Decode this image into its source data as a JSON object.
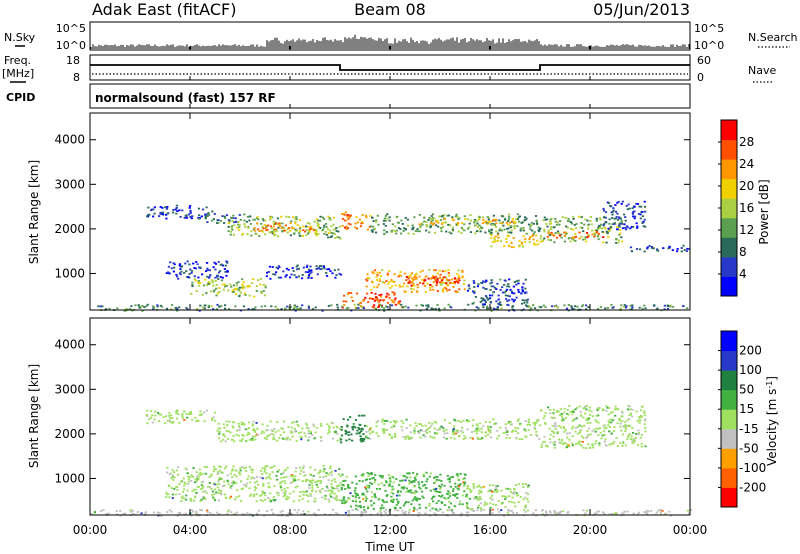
{
  "header": {
    "station": "Adak East (fitACF)",
    "beam": "Beam 08",
    "date": "05/Jun/2013"
  },
  "top_panels": {
    "nsky_label": "N.Sky",
    "nsky_ticks": [
      "10^5",
      "10^0"
    ],
    "nsearch_label": "N.Search",
    "nsearch_ticks": [
      "10^5",
      "10^0"
    ],
    "freq_label": "Freq.",
    "freq_unit": "[MHz]",
    "freq_ticks": [
      "18",
      "8"
    ],
    "nave_label": "Nave",
    "nave_ticks": [
      "60",
      "0"
    ],
    "cpid_label": "CPID",
    "cpid_text": "normalsound (fast) 157 RF"
  },
  "chart_data": [
    {
      "type": "line",
      "name": "frequency",
      "x": [
        "00:00",
        "10:00",
        "10:00",
        "18:00",
        "18:00",
        "24:00"
      ],
      "y": [
        14,
        14,
        12,
        12,
        14,
        14
      ],
      "ylim": [
        8,
        18
      ]
    },
    {
      "type": "heatmap",
      "name": "power",
      "ylabel": "Slant Range [km]",
      "ylim": [
        180,
        4600
      ],
      "y_ticks": [
        "4000",
        "3000",
        "2000",
        "1000"
      ],
      "colorbar_label": "Power [dB]",
      "colorbar_ticks": [
        "28",
        "24",
        "20",
        "16",
        "12",
        "8",
        "4"
      ],
      "colorbar_colors": [
        "#0000ff",
        "#2838c8",
        "#2a6a5a",
        "#5aa050",
        "#a8d040",
        "#f0d000",
        "#ff9800",
        "#ff5000",
        "#ff0000"
      ],
      "bands": [
        {
          "t0": 2.2,
          "t1": 5.0,
          "r0": 2250,
          "r1": 2550,
          "dB": 5
        },
        {
          "t0": 4.3,
          "t1": 6.5,
          "r0": 2150,
          "r1": 2350,
          "dB": 9
        },
        {
          "t0": 5.5,
          "t1": 9.8,
          "r0": 1850,
          "r1": 2300,
          "dB": 15
        },
        {
          "t0": 6.5,
          "t1": 9.0,
          "r0": 1950,
          "r1": 2150,
          "dB": 24
        },
        {
          "t0": 9.0,
          "t1": 10.0,
          "r0": 1800,
          "r1": 2100,
          "dB": 12
        },
        {
          "t0": 10.0,
          "t1": 11.2,
          "r0": 2000,
          "r1": 2400,
          "dB": 25
        },
        {
          "t0": 11.2,
          "t1": 18.0,
          "r0": 1900,
          "r1": 2350,
          "dB": 12
        },
        {
          "t0": 13.0,
          "t1": 17.0,
          "r0": 2100,
          "r1": 2250,
          "dB": 20
        },
        {
          "t0": 16.0,
          "t1": 18.0,
          "r0": 1600,
          "r1": 1900,
          "dB": 20
        },
        {
          "t0": 18.0,
          "t1": 21.3,
          "r0": 1700,
          "r1": 2300,
          "dB": 14
        },
        {
          "t0": 18.2,
          "t1": 20.5,
          "r0": 1800,
          "r1": 1950,
          "dB": 26
        },
        {
          "t0": 20.5,
          "t1": 22.2,
          "r0": 2000,
          "r1": 2650,
          "dB": 6
        },
        {
          "t0": 21.5,
          "t1": 24.0,
          "r0": 1500,
          "r1": 1650,
          "dB": 5
        },
        {
          "t0": 3.0,
          "t1": 5.5,
          "r0": 900,
          "r1": 1300,
          "dB": 5
        },
        {
          "t0": 4.0,
          "t1": 7.0,
          "r0": 500,
          "r1": 900,
          "dB": 15
        },
        {
          "t0": 7.0,
          "t1": 10.0,
          "r0": 900,
          "r1": 1200,
          "dB": 5
        },
        {
          "t0": 10.0,
          "t1": 12.5,
          "r0": 250,
          "r1": 600,
          "dB": 27
        },
        {
          "t0": 11.0,
          "t1": 15.0,
          "r0": 600,
          "r1": 1100,
          "dB": 22
        },
        {
          "t0": 12.5,
          "t1": 15.0,
          "r0": 750,
          "r1": 950,
          "dB": 28
        },
        {
          "t0": 15.0,
          "t1": 17.5,
          "r0": 300,
          "r1": 900,
          "dB": 6
        },
        {
          "t0": 0.0,
          "t1": 24.0,
          "r0": 180,
          "r1": 320,
          "dB": 10
        }
      ]
    },
    {
      "type": "heatmap",
      "name": "velocity",
      "ylabel": "Slant Range [km]",
      "ylim": [
        180,
        4600
      ],
      "y_ticks": [
        "4000",
        "3000",
        "2000",
        "1000"
      ],
      "colorbar_label": "Velocity [m s",
      "colorbar_label_sup": "-1",
      "colorbar_label_end": "]",
      "colorbar_ticks": [
        "200",
        "100",
        "50",
        "15",
        "-15",
        "-50",
        "-100",
        "-200"
      ],
      "colorbar_colors": [
        "#ff0000",
        "#ff6000",
        "#ffa000",
        "#c0c0c0",
        "#a0e060",
        "#40b040",
        "#208040",
        "#2838c8",
        "#0000ff"
      ],
      "bands": [
        {
          "t0": 2.2,
          "t1": 5.0,
          "r0": 2250,
          "r1": 2550,
          "v": 0
        },
        {
          "t0": 5.0,
          "t1": 10.0,
          "r0": 1850,
          "r1": 2300,
          "v": 0
        },
        {
          "t0": 10.0,
          "t1": 11.0,
          "r0": 1800,
          "r1": 2450,
          "v": 80
        },
        {
          "t0": 11.0,
          "t1": 18.0,
          "r0": 1900,
          "r1": 2350,
          "v": 0
        },
        {
          "t0": 18.0,
          "t1": 22.2,
          "r0": 1700,
          "r1": 2650,
          "v": 0
        },
        {
          "t0": 3.0,
          "t1": 10.0,
          "r0": 500,
          "r1": 1300,
          "v": 0
        },
        {
          "t0": 10.0,
          "t1": 15.0,
          "r0": 300,
          "r1": 1150,
          "v": 30
        },
        {
          "t0": 15.0,
          "t1": 17.5,
          "r0": 300,
          "r1": 900,
          "v": 0
        },
        {
          "t0": 0.0,
          "t1": 24.0,
          "r0": 180,
          "r1": 320,
          "v": -30
        }
      ]
    }
  ],
  "x_axis": {
    "ticks": [
      "00:00",
      "04:00",
      "08:00",
      "12:00",
      "16:00",
      "20:00",
      "00:00"
    ],
    "label": "Time UT"
  }
}
